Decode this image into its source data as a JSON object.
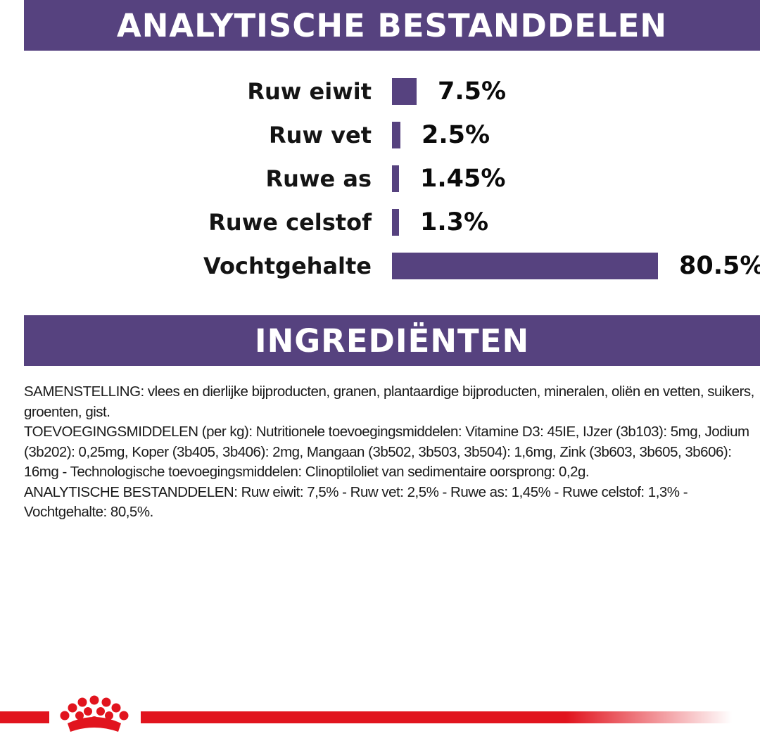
{
  "colors": {
    "brand_purple": "#56427f",
    "brand_red": "#e1141e",
    "text": "#111111"
  },
  "analysis": {
    "title": "ANALYTISCHE BESTANDDELEN",
    "rows": [
      {
        "label": "Ruw eiwit",
        "value_label": "7.5%",
        "percent": 7.5
      },
      {
        "label": "Ruw vet",
        "value_label": "2.5%",
        "percent": 2.5
      },
      {
        "label": "Ruwe as",
        "value_label": "1.45%",
        "percent": 1.45
      },
      {
        "label": "Ruwe celstof",
        "value_label": "1.3%",
        "percent": 1.3
      },
      {
        "label": "Vochtgehalte",
        "value_label": "80.5%",
        "percent": 80.5
      }
    ]
  },
  "ingredients": {
    "title": "INGREDIËNTEN",
    "paragraphs": [
      "SAMENSTELLING: vlees en dierlijke bijproducten, granen, plantaardige bijproducten, mineralen, oliën en vetten, suikers, groenten, gist.",
      "TOEVOEGINGSMIDDELEN (per kg): Nutritionele toevoegingsmiddelen: Vitamine D3: 45IE, IJzer (3b103): 5mg, Jodium (3b202): 0,25mg, Koper (3b405, 3b406): 2mg, Mangaan (3b502, 3b503, 3b504): 1,6mg, Zink (3b603, 3b605, 3b606): 16mg - Technologische toevoegingsmiddelen: Clinoptiloliet van sedimentaire oorsprong: 0,2g.",
      "ANALYTISCHE BESTANDDELEN: Ruw eiwit: 7,5% - Ruw vet: 2,5% - Ruwe as: 1,45% - Ruwe celstof: 1,3% - Vochtgehalte: 80,5%."
    ]
  },
  "footer": {
    "logo_icon": "royal-canin-crown-icon"
  }
}
